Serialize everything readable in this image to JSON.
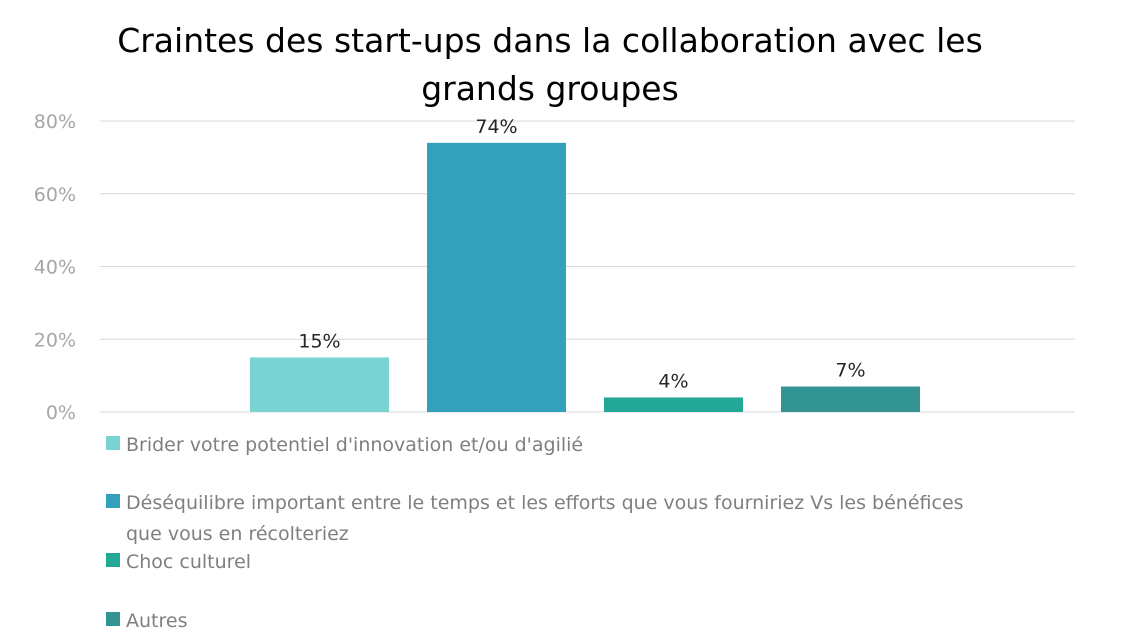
{
  "chart_data": {
    "type": "bar",
    "title_lines": [
      "Craintes des start-ups dans la collaboration avec les",
      "grands groupes"
    ],
    "categories": [
      "Brider votre potentiel d'innovation et/ou d'agilié",
      "Déséquilibre important entre le temps et les efforts que vous fourniriez Vs les bénéfices que vous en récolteriez",
      "Choc culturel",
      "Autres"
    ],
    "legend_lines": [
      [
        "Brider votre potentiel d'innovation et/ou d'agilié"
      ],
      [
        "Déséquilibre important entre le temps et les efforts que vous fourniriez Vs les bénéfices",
        "que vous en récolteriez"
      ],
      [
        "Choc culturel"
      ],
      [
        "Autres"
      ]
    ],
    "values": [
      15,
      74,
      4,
      7
    ],
    "data_labels": [
      "15%",
      "74%",
      "4%",
      "7%"
    ],
    "colors": [
      "#7ad3d3",
      "#33a1bb",
      "#23a897",
      "#339494"
    ],
    "yticks": [
      "0%",
      "20%",
      "40%",
      "60%",
      "80%"
    ],
    "ylim": [
      0,
      80
    ],
    "grid": true,
    "legend_position": "bottom-left",
    "xlabel": "",
    "ylabel": ""
  }
}
